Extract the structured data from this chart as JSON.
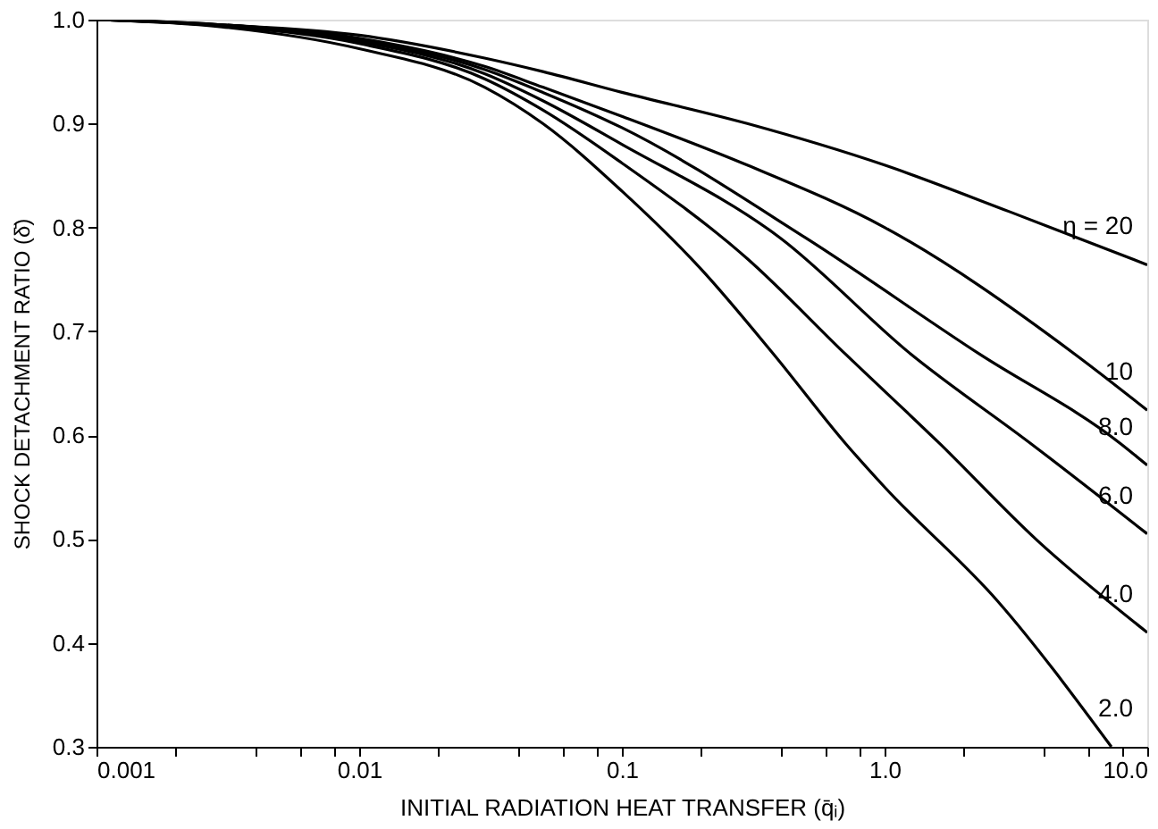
{
  "chart_data": {
    "type": "line",
    "xlabel": "INITIAL RADIATION HEAT TRANSFER (q̄ᵢ)",
    "ylabel": "SHOCK DETACHMENT RATIO (δ̄)",
    "log": "x",
    "grid": false,
    "legend": false,
    "marker": "none",
    "line_style": "solid",
    "xlim": [
      0.001,
      10
    ],
    "ylim": [
      0.3,
      1.0
    ],
    "xticks": [
      0.001,
      {
        "value": 0.002,
        "label": null
      },
      {
        "value": 0.004,
        "label": null
      },
      {
        "value": 0.006,
        "label": null
      },
      {
        "value": 0.008,
        "label": null
      },
      0.01,
      {
        "value": 0.02,
        "label": null
      },
      {
        "value": 0.04,
        "label": null
      },
      {
        "value": 0.06,
        "label": null
      },
      {
        "value": 0.08,
        "label": null
      },
      0.1,
      {
        "value": 0.2,
        "label": null
      },
      {
        "value": 0.4,
        "label": null
      },
      {
        "value": 0.6,
        "label": null
      },
      {
        "value": 0.8,
        "label": null
      },
      {
        "value": 1,
        "label": "1.0"
      },
      {
        "value": 2,
        "label": null
      },
      {
        "value": 4,
        "label": null
      },
      {
        "value": 6,
        "label": null
      },
      {
        "value": 8,
        "label": null
      },
      {
        "value": 10,
        "label": "10.0"
      }
    ],
    "yticks": [
      0.3,
      0.4,
      0.5,
      0.6,
      0.7,
      0.8,
      0.9,
      {
        "value": 1.0,
        "label": "1.0"
      }
    ],
    "series": [
      {
        "name": "η = 20",
        "color": "#000000",
        "x": [
          0.001,
          0.003,
          0.01,
          0.03,
          0.05,
          0.1,
          0.3,
          1,
          3,
          10
        ],
        "values": [
          1.0,
          0.995,
          0.985,
          0.963,
          0.95,
          0.93,
          0.9,
          0.86,
          0.815,
          0.764
        ]
      },
      {
        "name": "10",
        "color": "#000000",
        "x": [
          0.001,
          0.003,
          0.01,
          0.03,
          0.05,
          0.1,
          0.3,
          1,
          5.3,
          10
        ],
        "values": [
          1.0,
          0.995,
          0.982,
          0.955,
          0.935,
          0.907,
          0.86,
          0.8,
          0.678,
          0.624
        ]
      },
      {
        "name": "8.0",
        "color": "#000000",
        "x": [
          0.001,
          0.003,
          0.01,
          0.03,
          0.05,
          0.1,
          0.5,
          2.3,
          7.9,
          10
        ],
        "values": [
          1.0,
          0.995,
          0.981,
          0.952,
          0.93,
          0.896,
          0.79,
          0.678,
          0.592,
          0.571
        ]
      },
      {
        "name": "6.0",
        "color": "#000000",
        "x": [
          0.001,
          0.003,
          0.01,
          0.03,
          0.05,
          0.1,
          0.4,
          1.26,
          3.6,
          10
        ],
        "values": [
          1.0,
          0.994,
          0.979,
          0.948,
          0.922,
          0.88,
          0.79,
          0.678,
          0.592,
          0.505
        ]
      },
      {
        "name": "4.0",
        "color": "#000000",
        "x": [
          0.001,
          0.003,
          0.01,
          0.03,
          0.05,
          0.1,
          0.3,
          0.71,
          1.62,
          3.8,
          10
        ],
        "values": [
          1.0,
          0.994,
          0.977,
          0.943,
          0.913,
          0.862,
          0.77,
          0.678,
          0.592,
          0.499,
          0.41
        ]
      },
      {
        "name": "2.0",
        "color": "#000000",
        "x": [
          0.001,
          0.003,
          0.01,
          0.03,
          0.05,
          0.1,
          0.2,
          0.378,
          0.71,
          1,
          2.7,
          7.3
        ],
        "values": [
          1.0,
          0.993,
          0.972,
          0.935,
          0.9,
          0.835,
          0.76,
          0.678,
          0.592,
          0.55,
          0.44,
          0.3
        ]
      }
    ]
  }
}
